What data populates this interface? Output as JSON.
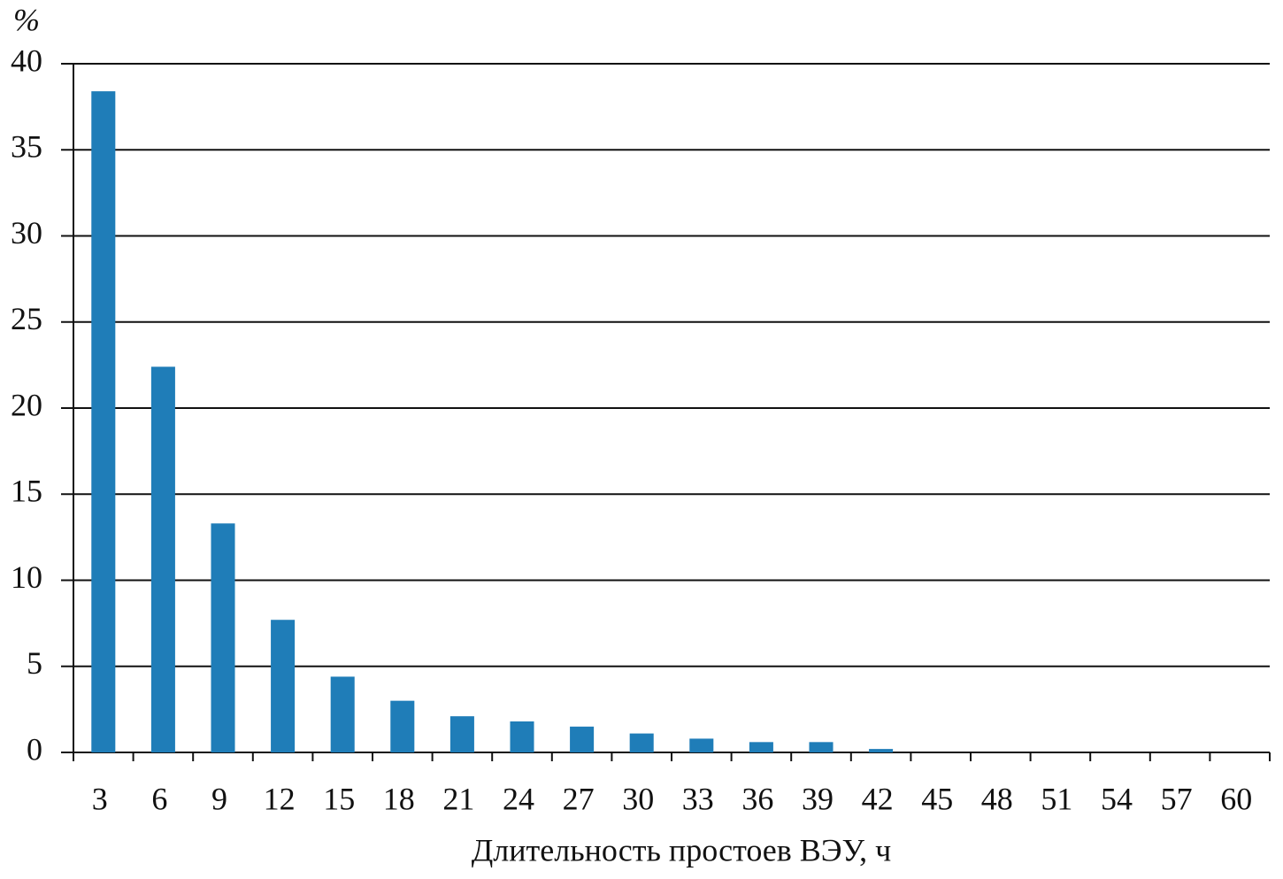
{
  "chart_data": {
    "type": "bar",
    "y_label": "%",
    "x_label": "Длительность простоев ВЭУ, ч",
    "categories": [
      "3",
      "6",
      "9",
      "12",
      "15",
      "18",
      "21",
      "24",
      "27",
      "30",
      "33",
      "36",
      "39",
      "42",
      "45",
      "48",
      "51",
      "54",
      "57",
      "60"
    ],
    "values": [
      38.4,
      22.4,
      13.3,
      7.7,
      4.4,
      3.0,
      2.1,
      1.8,
      1.5,
      1.1,
      0.8,
      0.6,
      0.6,
      0.2,
      0,
      0,
      0,
      0,
      0,
      0
    ],
    "color": "#1f7db8",
    "ylim": [
      0,
      40
    ],
    "yticks": [
      0,
      5,
      10,
      15,
      20,
      25,
      30,
      35,
      40
    ],
    "grid": true
  }
}
